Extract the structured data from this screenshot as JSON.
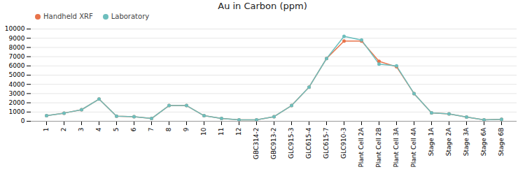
{
  "chart_data": {
    "type": "line",
    "title": "Au in Carbon (ppm)",
    "categories": [
      "1",
      "2",
      "3",
      "4",
      "5",
      "6",
      "7",
      "8",
      "9",
      "10",
      "11",
      "12",
      "GBC314-2",
      "GBC913-2",
      "GLC915-3",
      "GLC615-4",
      "GLC615-7",
      "GLC910-3",
      "Plant Cell 2A",
      "Plant Cell 2B",
      "Plant Cell 3A",
      "Plant Cell 4A",
      "Stage 1A",
      "Stage 2A",
      "Stage 3A",
      "Stage 6A",
      "Stage 6B"
    ],
    "series": [
      {
        "name": "Handheld XRF",
        "color": "#E8734A",
        "values": [
          600,
          880,
          1250,
          2400,
          550,
          500,
          300,
          1700,
          1700,
          600,
          300,
          150,
          150,
          500,
          1700,
          3700,
          6800,
          8700,
          8700,
          6500,
          5900,
          3000,
          900,
          800,
          450,
          150,
          200
        ]
      },
      {
        "name": "Laboratory",
        "color": "#6DBEBD",
        "values": [
          600,
          880,
          1250,
          2400,
          550,
          500,
          300,
          1700,
          1700,
          600,
          300,
          150,
          150,
          500,
          1700,
          3700,
          6800,
          9200,
          8800,
          6200,
          6000,
          3000,
          900,
          800,
          450,
          150,
          200
        ]
      }
    ],
    "ylim": [
      0,
      10000
    ],
    "yticks": [
      0,
      1000,
      2000,
      3000,
      4000,
      5000,
      6000,
      7000,
      8000,
      9000,
      10000
    ],
    "grid": true,
    "legend": "upper left",
    "marker": "circle"
  }
}
